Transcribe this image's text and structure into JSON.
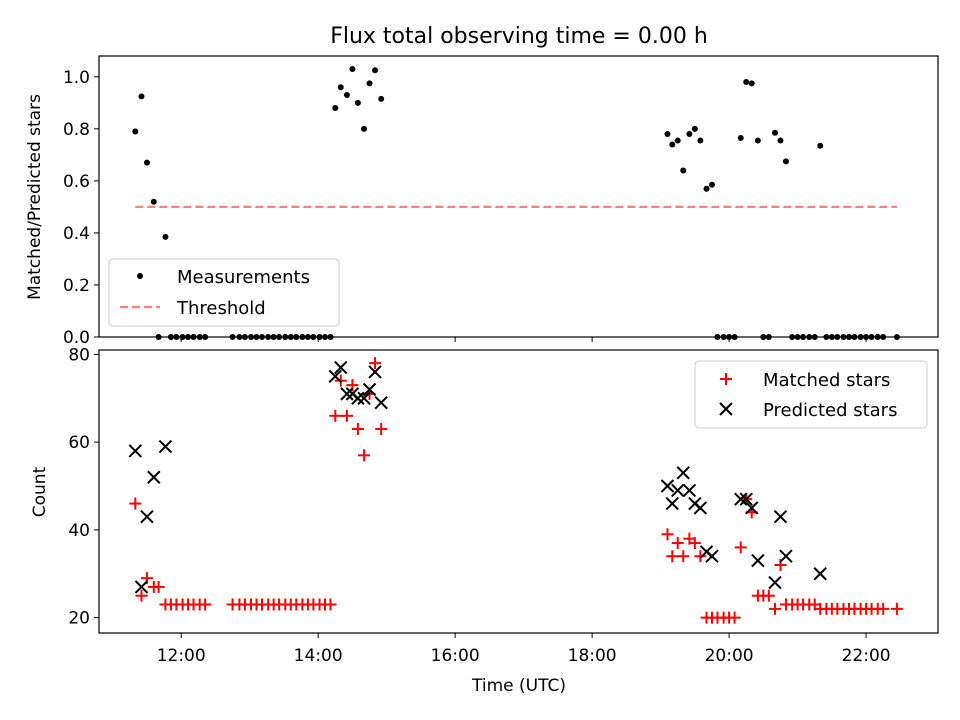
{
  "chart_data": [
    {
      "type": "scatter",
      "title": "Flux total observing time = 0.00 h",
      "ylabel": "Matched/Predicted stars",
      "xlabel": "",
      "ylim": [
        0,
        1.08
      ],
      "yticks": [
        0.0,
        0.2,
        0.4,
        0.6,
        0.8,
        1.0
      ],
      "ytick_labels": [
        "0.0",
        "0.2",
        "0.4",
        "0.6",
        "0.8",
        "1.0"
      ],
      "xlim_hours": [
        10.8,
        23.05
      ],
      "xticks_hours": [
        12,
        14,
        16,
        18,
        20,
        22
      ],
      "xtick_labels": [],
      "grid": false,
      "legend_position": "lower-left",
      "series": [
        {
          "name": "Measurements",
          "marker": "dot",
          "color": "#000000",
          "x_hours": [
            11.33,
            11.42,
            11.5,
            11.6,
            11.77,
            11.67,
            11.85,
            11.93,
            12.02,
            12.1,
            12.18,
            12.27,
            12.35,
            12.75,
            12.85,
            12.93,
            13.02,
            13.1,
            13.18,
            13.27,
            13.35,
            13.43,
            13.52,
            13.6,
            13.68,
            13.77,
            13.85,
            13.93,
            14.02,
            14.1,
            14.18,
            14.25,
            14.33,
            14.42,
            14.5,
            14.58,
            14.67,
            14.75,
            14.83,
            14.92,
            19.1,
            19.17,
            19.25,
            19.33,
            19.42,
            19.5,
            19.58,
            19.67,
            19.75,
            19.83,
            19.92,
            20.0,
            20.08,
            20.17,
            20.25,
            20.33,
            20.42,
            20.5,
            20.58,
            20.67,
            20.75,
            20.83,
            20.92,
            21.0,
            21.08,
            21.17,
            21.25,
            21.33,
            21.42,
            21.5,
            21.58,
            21.67,
            21.75,
            21.83,
            21.92,
            22.0,
            22.08,
            22.17,
            22.25,
            22.45
          ],
          "y": [
            0.79,
            0.925,
            0.67,
            0.52,
            0.385,
            0.0,
            0.0,
            0.0,
            0.0,
            0.0,
            0.0,
            0.0,
            0.0,
            0.0,
            0.0,
            0.0,
            0.0,
            0.0,
            0.0,
            0.0,
            0.0,
            0.0,
            0.0,
            0.0,
            0.0,
            0.0,
            0.0,
            0.0,
            0.0,
            0.0,
            0.0,
            0.88,
            0.96,
            0.93,
            1.03,
            0.9,
            0.8,
            0.975,
            1.025,
            0.915,
            0.78,
            0.74,
            0.755,
            0.64,
            0.78,
            0.8,
            0.755,
            0.57,
            0.585,
            0.0,
            0.0,
            0.0,
            0.0,
            0.765,
            0.98,
            0.975,
            0.755,
            0.0,
            0.0,
            0.785,
            0.755,
            0.675,
            0.0,
            0.0,
            0.0,
            0.0,
            0.0,
            0.735,
            0.0,
            0.0,
            0.0,
            0.0,
            0.0,
            0.0,
            0.0,
            0.0,
            0.0,
            0.0,
            0.0,
            0.0
          ]
        },
        {
          "name": "Threshold",
          "marker": "dashed-line",
          "color": "#ff8080",
          "x_hours": [
            11.33,
            22.45
          ],
          "y": [
            0.5,
            0.5
          ]
        }
      ]
    },
    {
      "type": "scatter",
      "title": "",
      "ylabel": "Count",
      "xlabel": "Time (UTC)",
      "ylim": [
        16.5,
        81
      ],
      "yticks": [
        20,
        40,
        60,
        80
      ],
      "ytick_labels": [
        "20",
        "40",
        "60",
        "80"
      ],
      "xlim_hours": [
        10.8,
        23.05
      ],
      "xticks_hours": [
        12,
        14,
        16,
        18,
        20,
        22
      ],
      "xtick_labels": [
        "12:00",
        "14:00",
        "16:00",
        "18:00",
        "20:00",
        "22:00"
      ],
      "grid": false,
      "legend_position": "top-right",
      "series": [
        {
          "name": "Matched stars",
          "marker": "plus",
          "color": "#ff0000",
          "x_hours": [
            11.33,
            11.42,
            11.5,
            11.6,
            11.67,
            11.77,
            11.85,
            11.93,
            12.02,
            12.1,
            12.18,
            12.27,
            12.35,
            12.75,
            12.85,
            12.93,
            13.02,
            13.1,
            13.18,
            13.27,
            13.35,
            13.43,
            13.52,
            13.6,
            13.68,
            13.77,
            13.85,
            13.93,
            14.02,
            14.1,
            14.18,
            14.25,
            14.33,
            14.42,
            14.5,
            14.58,
            14.67,
            14.75,
            14.83,
            14.92,
            19.1,
            19.17,
            19.25,
            19.33,
            19.42,
            19.5,
            19.58,
            19.67,
            19.75,
            19.83,
            19.92,
            20.0,
            20.08,
            20.17,
            20.25,
            20.33,
            20.42,
            20.5,
            20.58,
            20.67,
            20.75,
            20.83,
            20.92,
            21.0,
            21.08,
            21.17,
            21.25,
            21.33,
            21.42,
            21.5,
            21.58,
            21.67,
            21.75,
            21.83,
            21.92,
            22.0,
            22.08,
            22.17,
            22.25,
            22.45
          ],
          "y": [
            46,
            25,
            29,
            27,
            27,
            23,
            23,
            23,
            23,
            23,
            23,
            23,
            23,
            23,
            23,
            23,
            23,
            23,
            23,
            23,
            23,
            23,
            23,
            23,
            23,
            23,
            23,
            23,
            23,
            23,
            23,
            66,
            74,
            66,
            73,
            63,
            57,
            71,
            78,
            63,
            39,
            34,
            37,
            34,
            38,
            37,
            34,
            20,
            20,
            20,
            20,
            20,
            20,
            36,
            47,
            44,
            25,
            25,
            25,
            22,
            32,
            23,
            23,
            23,
            23,
            23,
            23,
            22,
            22,
            22,
            22,
            22,
            22,
            22,
            22,
            22,
            22,
            22,
            22,
            22
          ]
        },
        {
          "name": "Predicted stars",
          "marker": "x",
          "color": "#000000",
          "x_hours": [
            11.33,
            11.42,
            11.5,
            11.6,
            11.77,
            14.25,
            14.33,
            14.42,
            14.5,
            14.58,
            14.67,
            14.75,
            14.83,
            14.92,
            19.1,
            19.17,
            19.25,
            19.33,
            19.42,
            19.5,
            19.58,
            19.67,
            19.75,
            20.17,
            20.25,
            20.33,
            20.42,
            20.67,
            20.75,
            20.83,
            21.33
          ],
          "y": [
            58,
            27,
            43,
            52,
            59,
            75,
            77,
            71,
            71,
            70,
            70,
            72,
            76,
            69,
            50,
            46,
            49,
            53,
            49,
            46,
            45,
            35,
            34,
            47,
            47,
            45,
            33,
            28,
            43,
            34,
            30
          ]
        }
      ]
    }
  ]
}
